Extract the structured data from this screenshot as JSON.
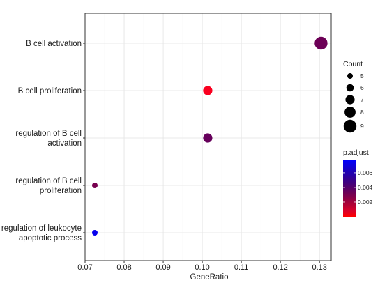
{
  "chart_data": {
    "type": "scatter",
    "chart_kind": "dotplot",
    "xlabel": "GeneRatio",
    "ylabel": "",
    "xlim": [
      0.07,
      0.133
    ],
    "xticks": [
      0.07,
      0.08,
      0.09,
      0.1,
      0.11,
      0.12,
      0.13
    ],
    "xtick_labels": [
      "0.07",
      "0.08",
      "0.09",
      "0.10",
      "0.11",
      "0.12",
      "0.13"
    ],
    "grid": true,
    "legend_position": "right",
    "categories": [
      "B cell activation",
      "B cell proliferation",
      "regulation of B cell activation",
      "regulation of B cell proliferation",
      "regulation of leukocyte apoptotic process"
    ],
    "category_lines": [
      [
        "B cell activation"
      ],
      [
        "B cell proliferation"
      ],
      [
        "regulation of B cell",
        "activation"
      ],
      [
        "regulation of B cell",
        "proliferation"
      ],
      [
        "regulation of leukocyte",
        "apoptotic process"
      ]
    ],
    "points": [
      {
        "category": "B cell activation",
        "gene_ratio": 0.1304,
        "count": 9,
        "p_adjust": 0.0033
      },
      {
        "category": "B cell proliferation",
        "gene_ratio": 0.1014,
        "count": 7,
        "p_adjust": 0.0001
      },
      {
        "category": "regulation of B cell activation",
        "gene_ratio": 0.1014,
        "count": 7,
        "p_adjust": 0.0035
      },
      {
        "category": "regulation of B cell proliferation",
        "gene_ratio": 0.0725,
        "count": 5,
        "p_adjust": 0.003
      },
      {
        "category": "regulation of leukocyte apoptotic process",
        "gene_ratio": 0.0725,
        "count": 5,
        "p_adjust": 0.0074
      }
    ],
    "size_legend": {
      "title": "Count",
      "values": [
        5,
        6,
        7,
        8,
        9
      ],
      "labels": [
        "5",
        "6",
        "7",
        "8",
        "9"
      ]
    },
    "color_legend": {
      "title": "p.adjust",
      "range": [
        0.0,
        0.0078
      ],
      "ticks": [
        0.002,
        0.004,
        0.006
      ],
      "tick_labels": [
        "0.002",
        "0.004",
        "0.006"
      ],
      "low_color": "#ff0000",
      "high_color": "#0000ff"
    }
  }
}
